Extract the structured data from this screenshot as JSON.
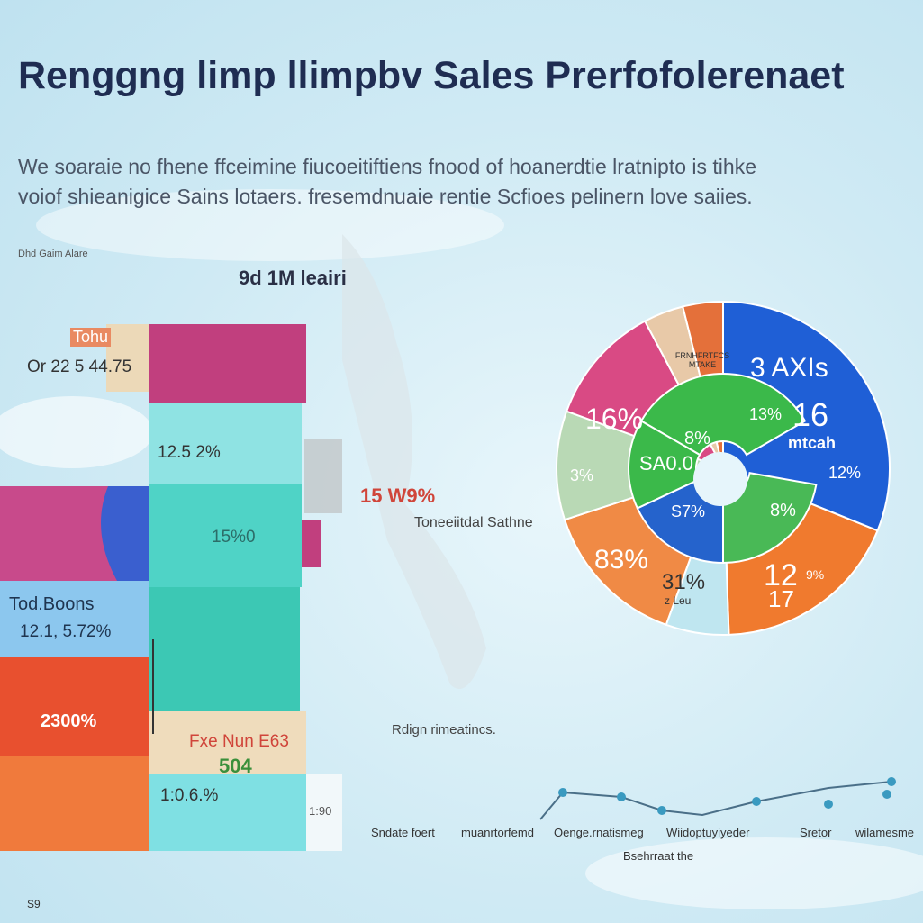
{
  "header": {
    "title": "Renggng limp llimpbv Sales Prerfofolerenaet",
    "subtitle": [
      "We soaraie no fhene ffceimine fiucoeitiftiens fnood of hoanerdtie lratnipto is tihke",
      "voiof shieanigice Sains lotaers. fresemdnuaie rentie Scfioes pelinern love saiies."
    ]
  },
  "bar_panel": {
    "source": "Dhd Gaim Alare",
    "heading": "9d 1M leairi",
    "labels": [
      "Tohu",
      "Or 22 5 44.75",
      "12.5 2%",
      "15%0",
      "15 W9%",
      "Toneeiitdal Sathne",
      "Tod.Boons",
      "12.1, 5.72%",
      "2300%",
      "Fxe Nun E63",
      "504",
      "1:0.6.%",
      "1:90"
    ]
  },
  "pie_panel": {
    "labels": [
      "FRNHFRTFCS MTAKE",
      "3 AXIs",
      "13%",
      "16",
      "mtcah",
      "12%",
      "16%",
      "8%",
      "SA0.0",
      "3%",
      "S7%",
      "8%",
      "83%",
      "31%",
      "z Leu",
      "12",
      "17",
      "9%"
    ]
  },
  "line_panel": {
    "note": "Rdign rimeatincs.",
    "categories": [
      "Sndate foert",
      "muanrtorfemd",
      "Oenge.rnatismeg",
      "Wiidoptuyiyeder",
      "Sretor",
      "wilamesme"
    ],
    "axis_label": "Bsehrraat the"
  },
  "footer": "S9"
}
